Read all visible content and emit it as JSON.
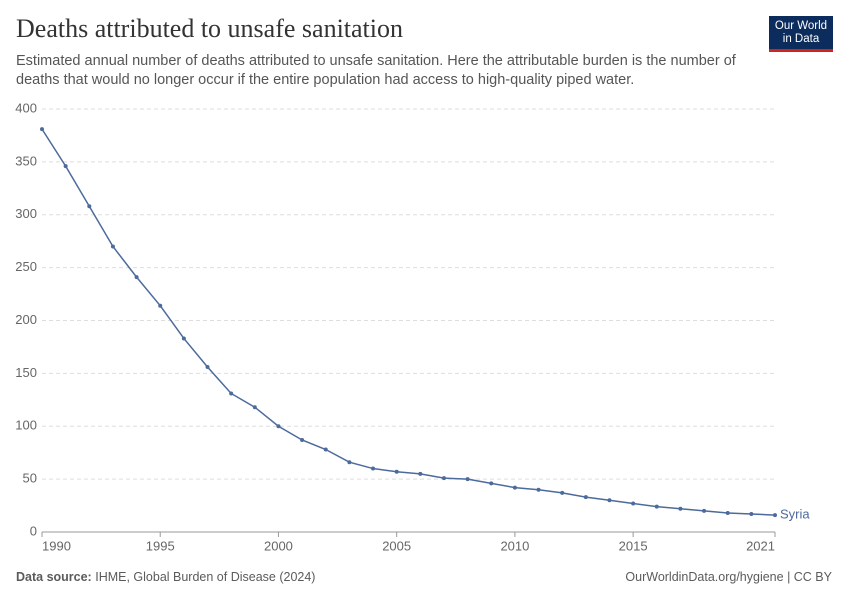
{
  "chart_data": {
    "type": "line",
    "title": "Deaths attributed to unsafe sanitation",
    "subtitle": "Estimated annual number of deaths attributed to unsafe sanitation. Here the attributable burden is the number of deaths that would no longer occur if the entire population had access to high-quality piped water.",
    "x": [
      1990,
      1991,
      1992,
      1993,
      1994,
      1995,
      1996,
      1997,
      1998,
      1999,
      2000,
      2001,
      2002,
      2003,
      2004,
      2005,
      2006,
      2007,
      2008,
      2009,
      2010,
      2011,
      2012,
      2013,
      2014,
      2015,
      2016,
      2017,
      2018,
      2019,
      2020,
      2021
    ],
    "series": [
      {
        "name": "Syria",
        "color": "#4c6a9c",
        "values": [
          381,
          346,
          308,
          270,
          241,
          214,
          183,
          156,
          131,
          118,
          100,
          87,
          78,
          66,
          60,
          57,
          55,
          51,
          50,
          46,
          42,
          40,
          37,
          33,
          30,
          27,
          24,
          22,
          20,
          18,
          17,
          16
        ]
      }
    ],
    "xlim": [
      1990,
      2021
    ],
    "xticks": [
      1990,
      1995,
      2000,
      2005,
      2010,
      2015,
      2021
    ],
    "ylim": [
      0,
      400
    ],
    "yticks": [
      0,
      50,
      100,
      150,
      200,
      250,
      300,
      350,
      400
    ],
    "grid": true
  },
  "logo": {
    "line1": "Our World",
    "line2": "in Data"
  },
  "footer": {
    "source_label": "Data source:",
    "source": "IHME, Global Burden of Disease (2024)",
    "license": "OurWorldinData.org/hygiene | CC BY"
  }
}
